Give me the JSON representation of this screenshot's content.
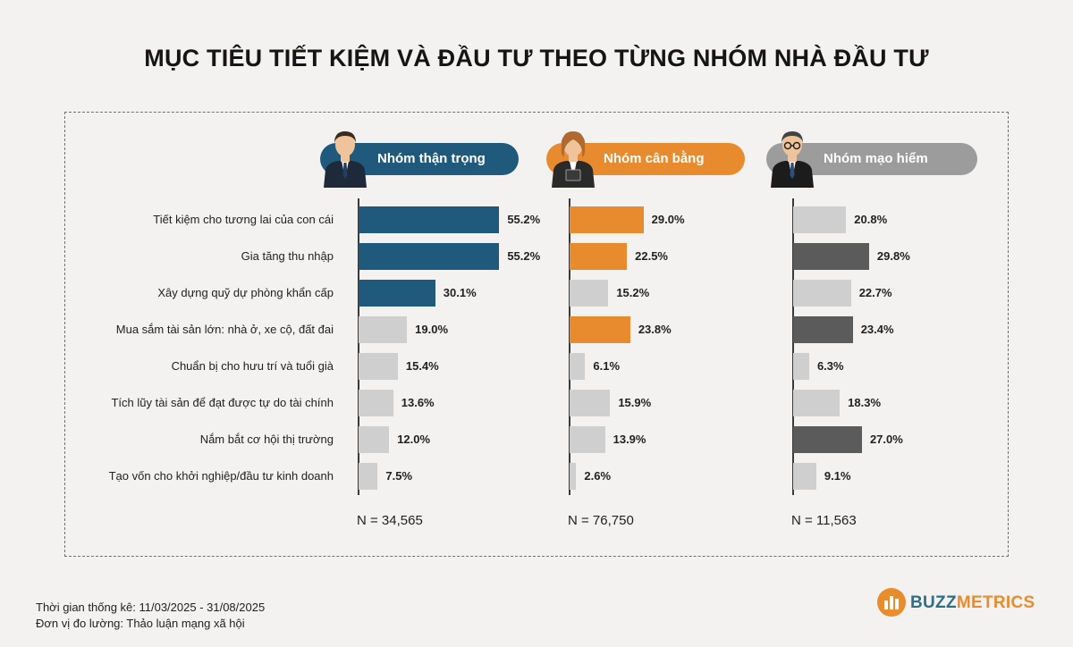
{
  "title": "MỤC TIÊU TIẾT KIỆM VÀ ĐẦU TƯ THEO TỪNG NHÓM NHÀ ĐẦU TƯ",
  "footer": {
    "period": "Thời gian thống kê: 11/03/2025 - 31/08/2025",
    "unit": "Đơn vị đo lường: Thảo luận mạng xã hội"
  },
  "brand": {
    "part1": "BUZZ",
    "part2": "METRICS"
  },
  "colors": {
    "gray": "#cfcfcf",
    "blue": "#1f5a7c",
    "orange": "#e88a2e",
    "dark": "#5b5b5b",
    "pill_gray": "#9c9c9c"
  },
  "chart_data": {
    "type": "bar",
    "orientation": "horizontal",
    "categories": [
      "Tiết kiệm cho tương lai của con cái",
      "Gia tăng thu nhập",
      "Xây dựng quỹ dự phòng khẩn cấp",
      "Mua sắm tài sản lớn: nhà ở, xe cộ, đất đai",
      "Chuẩn bị cho hưu trí và tuổi già",
      "Tích lũy tài sản để đạt được tự do tài chính",
      "Nắm bắt cơ hội thị trường",
      "Tạo vốn cho khởi nghiệp/đầu tư kinh doanh"
    ],
    "series": [
      {
        "name": "Nhóm thận trọng",
        "values": [
          55.2,
          55.2,
          30.1,
          19.0,
          15.4,
          13.6,
          12.0,
          7.5
        ],
        "labels": [
          "55.2%",
          "55.2%",
          "30.1%",
          "19.0%",
          "15.4%",
          "13.6%",
          "12.0%",
          "7.5%"
        ],
        "highlight": [
          true,
          true,
          true,
          false,
          false,
          false,
          false,
          false
        ],
        "n": "N = 34,565"
      },
      {
        "name": "Nhóm cân bằng",
        "values": [
          29.0,
          22.5,
          15.2,
          23.8,
          6.1,
          15.9,
          13.9,
          2.6
        ],
        "labels": [
          "29.0%",
          "22.5%",
          "15.2%",
          "23.8%",
          "6.1%",
          "15.9%",
          "13.9%",
          "2.6%"
        ],
        "highlight": [
          true,
          true,
          false,
          true,
          false,
          false,
          false,
          false
        ],
        "n": "N = 76,750"
      },
      {
        "name": "Nhóm mạo hiểm",
        "values": [
          20.8,
          29.8,
          22.7,
          23.4,
          6.3,
          18.3,
          27.0,
          9.1
        ],
        "labels": [
          "20.8%",
          "29.8%",
          "22.7%",
          "23.4%",
          "6.3%",
          "18.3%",
          "27.0%",
          "9.1%"
        ],
        "highlight": [
          false,
          true,
          false,
          true,
          false,
          false,
          true,
          false
        ],
        "n": "N = 11,563"
      }
    ]
  }
}
